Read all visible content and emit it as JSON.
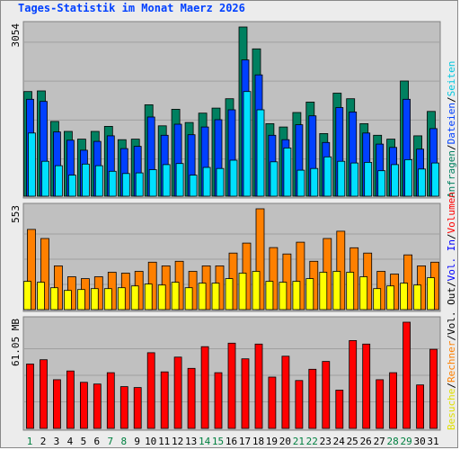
{
  "title": "Tages-Statistik im Monat Maerz 2026",
  "chart_data": [
    {
      "name": "traffic",
      "type": "bar",
      "ymax_label": "3054",
      "ylim": [
        0,
        3054
      ],
      "categories": [
        "1",
        "2",
        "3",
        "4",
        "5",
        "6",
        "7",
        "8",
        "9",
        "10",
        "11",
        "12",
        "13",
        "14",
        "15",
        "16",
        "17",
        "18",
        "19",
        "20",
        "21",
        "22",
        "23",
        "24",
        "25",
        "26",
        "27",
        "28",
        "29",
        "30",
        "31"
      ],
      "series": [
        {
          "name": "Anfragen",
          "color": "#008060",
          "values": [
            1890,
            1900,
            1350,
            1170,
            1030,
            1170,
            1260,
            1020,
            1030,
            1650,
            1270,
            1570,
            1330,
            1500,
            1590,
            1760,
            3054,
            2660,
            1310,
            1250,
            1510,
            1700,
            1130,
            1860,
            1760,
            1310,
            1100,
            1030,
            2080,
            1090,
            1530
          ]
        },
        {
          "name": "Dateien",
          "color": "#0040ff",
          "values": [
            1750,
            1710,
            1160,
            1010,
            830,
            990,
            1090,
            860,
            900,
            1430,
            1100,
            1300,
            1110,
            1250,
            1380,
            1560,
            2460,
            2190,
            1100,
            1020,
            1290,
            1450,
            970,
            1600,
            1520,
            1140,
            940,
            880,
            1750,
            850,
            1220
          ]
        },
        {
          "name": "Seiten",
          "color": "#00e0ff",
          "values": [
            1140,
            630,
            550,
            380,
            580,
            550,
            450,
            410,
            420,
            480,
            570,
            590,
            380,
            520,
            500,
            650,
            1890,
            1560,
            620,
            870,
            470,
            500,
            710,
            630,
            600,
            610,
            460,
            570,
            660,
            490,
            600
          ]
        }
      ]
    },
    {
      "name": "visits",
      "type": "bar",
      "ymax_label": "553",
      "ylim": [
        0,
        553
      ],
      "categories": [
        "1",
        "2",
        "3",
        "4",
        "5",
        "6",
        "7",
        "8",
        "9",
        "10",
        "11",
        "12",
        "13",
        "14",
        "15",
        "16",
        "17",
        "18",
        "19",
        "20",
        "21",
        "22",
        "23",
        "24",
        "25",
        "26",
        "27",
        "28",
        "29",
        "30",
        "31"
      ],
      "series": [
        {
          "name": "Rechner",
          "color": "#ff8000",
          "values": [
            440,
            390,
            240,
            180,
            170,
            180,
            205,
            200,
            210,
            260,
            240,
            265,
            210,
            240,
            240,
            310,
            365,
            553,
            340,
            305,
            370,
            265,
            390,
            430,
            339,
            310,
            210,
            195,
            300,
            240,
            260
          ]
        },
        {
          "name": "Besuche",
          "color": "#ffff00",
          "values": [
            155,
            150,
            120,
            105,
            110,
            115,
            115,
            120,
            130,
            140,
            135,
            150,
            120,
            145,
            145,
            170,
            200,
            210,
            155,
            150,
            155,
            170,
            205,
            210,
            205,
            180,
            115,
            130,
            145,
            135,
            175
          ]
        }
      ]
    },
    {
      "name": "volume",
      "type": "bar",
      "ymax_label": "61.05 MB",
      "ylim": [
        0,
        61.05
      ],
      "categories": [
        "1",
        "2",
        "3",
        "4",
        "5",
        "6",
        "7",
        "8",
        "9",
        "10",
        "11",
        "12",
        "13",
        "14",
        "15",
        "16",
        "17",
        "18",
        "19",
        "20",
        "21",
        "22",
        "23",
        "24",
        "25",
        "26",
        "27",
        "28",
        "29",
        "30",
        "31"
      ],
      "series": [
        {
          "name": "Volumen",
          "color": "#ff0000",
          "values": [
            37,
            39.5,
            28,
            33,
            26.5,
            25.5,
            32,
            24,
            23.5,
            43.5,
            32.5,
            41,
            34.5,
            47,
            32,
            49,
            40,
            48.5,
            29.5,
            41.5,
            27.5,
            34,
            38.5,
            22,
            50.5,
            48.5,
            28,
            32,
            61.05,
            25,
            45.5
          ]
        }
      ]
    }
  ],
  "axis": {
    "days": [
      "1",
      "2",
      "3",
      "4",
      "5",
      "6",
      "7",
      "8",
      "9",
      "10",
      "11",
      "12",
      "13",
      "14",
      "15",
      "16",
      "17",
      "18",
      "19",
      "20",
      "21",
      "22",
      "23",
      "24",
      "25",
      "26",
      "27",
      "28",
      "29",
      "30",
      "31"
    ],
    "weekend_days": [
      "1",
      "7",
      "8",
      "14",
      "15",
      "21",
      "22",
      "28",
      "29"
    ],
    "weekend_color": "#008040",
    "weekday_color": "#000000"
  },
  "legend": {
    "right_top": [
      {
        "label": "Anfragen",
        "color": "#008060"
      },
      {
        "label": "/",
        "color": "#000000"
      },
      {
        "label": "Dateien",
        "color": "#0040ff"
      },
      {
        "label": "/",
        "color": "#000000"
      },
      {
        "label": "Seiten",
        "color": "#00c8e0"
      }
    ],
    "right_middle": [
      {
        "label": "Besuche",
        "color": "#e0e000"
      },
      {
        "label": "/",
        "color": "#000000"
      },
      {
        "label": "Rechner",
        "color": "#ff8000"
      },
      {
        "label": "/",
        "color": "#000000"
      },
      {
        "label": "Vol. Out",
        "color": "#000000"
      },
      {
        "label": "/",
        "color": "#000000"
      },
      {
        "label": "Vol. In",
        "color": "#0000ff"
      },
      {
        "label": "/",
        "color": "#000000"
      },
      {
        "label": "Volumen",
        "color": "#ff0000"
      }
    ]
  }
}
